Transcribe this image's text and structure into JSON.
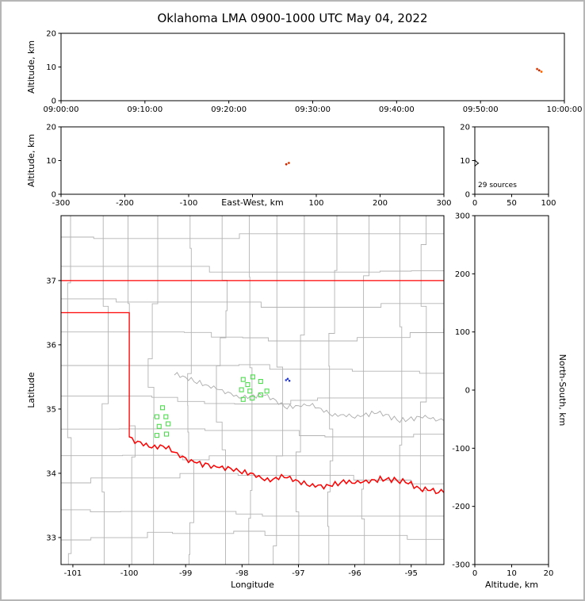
{
  "title": "Oklahoma LMA 0900-1000 UTC May 04, 2022",
  "colors": {
    "axis": "#000000",
    "county": "#b3b3b3",
    "state_border": "#ff0000",
    "river_gray": "#aaaaaa",
    "station": "#4fdc4f",
    "histogram": "#000000"
  },
  "chart_data": {
    "type": "scatter",
    "panels": [
      {
        "id": "time_altitude",
        "ylabel": "Altitude, km",
        "ylim": [
          0,
          20
        ],
        "yticks": [
          0,
          10,
          20
        ],
        "xlim": [
          0,
          3600
        ],
        "xtick_positions": [
          0,
          600,
          1200,
          1800,
          2400,
          3000,
          3600
        ],
        "xtick_labels": [
          "09:00:00",
          "09:10:00",
          "09:20:00",
          "09:30:00",
          "09:40:00",
          "09:50:00",
          "10:00:00"
        ],
        "points": [
          {
            "x": 3405,
            "y": 9.4,
            "c": "#e03a00"
          },
          {
            "x": 3420,
            "y": 9.0,
            "c": "#c82600"
          },
          {
            "x": 3436,
            "y": 8.6,
            "c": "#ff6a00"
          }
        ]
      },
      {
        "id": "ew_altitude",
        "xlabel": "East-West, km",
        "ylabel": "Altitude, km",
        "ylim": [
          0,
          20
        ],
        "yticks": [
          0,
          10,
          20
        ],
        "xlim": [
          -300,
          300
        ],
        "xtick_positions": [
          -300,
          -200,
          -100,
          0,
          100,
          200,
          300
        ],
        "xtick_labels": [
          "-300",
          "-200",
          "-100",
          "",
          "100",
          "200",
          "300"
        ],
        "points": [
          {
            "x": 57,
            "y": 9.3,
            "c": "#e03a00"
          },
          {
            "x": 53,
            "y": 8.9,
            "c": "#c82600"
          }
        ]
      },
      {
        "id": "source_count_altitude",
        "ylim": [
          0,
          20
        ],
        "yticks": [
          0,
          10,
          20
        ],
        "xlim": [
          0,
          100
        ],
        "xtick_positions": [
          0,
          50,
          100
        ],
        "xtick_labels": [
          "0",
          "50",
          "100"
        ],
        "annotation": "29 sources",
        "profile": {
          "alt": [
            8.3,
            8.8,
            9.2,
            9.5,
            9.9,
            10.3
          ],
          "count": [
            0,
            2,
            5,
            3,
            1,
            0
          ]
        }
      },
      {
        "id": "map",
        "xlabel": "Longitude",
        "ylabel": "Latitude",
        "xlim": [
          -101.21,
          -94.42
        ],
        "ylim": [
          32.58,
          38.01
        ],
        "xtick_positions": [
          -101,
          -100,
          -99,
          -98,
          -97,
          -96,
          -95
        ],
        "xtick_labels": [
          "-101",
          "-100",
          "-99",
          "-98",
          "-97",
          "-96",
          "-95"
        ],
        "yticks": [
          33,
          34,
          35,
          36,
          37
        ],
        "stations": [
          [
            -97.98,
            35.46
          ],
          [
            -97.81,
            35.5
          ],
          [
            -97.67,
            35.43
          ],
          [
            -98.01,
            35.3
          ],
          [
            -97.86,
            35.28
          ],
          [
            -97.98,
            35.15
          ],
          [
            -97.82,
            35.17
          ],
          [
            -97.67,
            35.22
          ],
          [
            -97.56,
            35.28
          ],
          [
            -97.9,
            35.38
          ],
          [
            -99.41,
            35.02
          ],
          [
            -99.51,
            34.88
          ],
          [
            -99.35,
            34.88
          ],
          [
            -99.47,
            34.73
          ],
          [
            -99.31,
            34.77
          ],
          [
            -99.51,
            34.59
          ],
          [
            -99.34,
            34.61
          ]
        ],
        "sources": [
          [
            -97.19,
            35.47,
            "#2438c8"
          ],
          [
            -97.16,
            35.44,
            "#1c2cb0"
          ],
          [
            -97.22,
            35.45,
            "#3248d6"
          ]
        ],
        "state_border": {
          "north_lat": 37.0,
          "panhandle_south_lat": 36.5,
          "west_lon": -100.0,
          "red_river": [
            [
              -100.0,
              34.56
            ],
            [
              -99.7,
              34.42
            ],
            [
              -99.35,
              34.4
            ],
            [
              -99.0,
              34.22
            ],
            [
              -98.6,
              34.12
            ],
            [
              -98.2,
              34.07
            ],
            [
              -97.9,
              34.0
            ],
            [
              -97.55,
              33.9
            ],
            [
              -97.2,
              33.95
            ],
            [
              -96.9,
              33.84
            ],
            [
              -96.6,
              33.8
            ],
            [
              -96.2,
              33.86
            ],
            [
              -95.8,
              33.87
            ],
            [
              -95.45,
              33.92
            ],
            [
              -95.1,
              33.87
            ],
            [
              -94.8,
              33.75
            ],
            [
              -94.42,
              33.7
            ]
          ]
        },
        "gray_river": [
          [
            -99.2,
            35.55
          ],
          [
            -98.8,
            35.42
          ],
          [
            -98.4,
            35.3
          ],
          [
            -98.0,
            35.17
          ],
          [
            -97.6,
            35.22
          ],
          [
            -97.2,
            35.02
          ],
          [
            -96.8,
            35.08
          ],
          [
            -96.4,
            34.92
          ],
          [
            -96.0,
            34.88
          ],
          [
            -95.6,
            34.95
          ],
          [
            -95.2,
            34.82
          ],
          [
            -94.8,
            34.88
          ],
          [
            -94.42,
            34.82
          ]
        ]
      },
      {
        "id": "ns_altitude",
        "xlabel": "Altitude, km",
        "ylabel": "North-South, km",
        "xlim": [
          0,
          20
        ],
        "xtick_positions": [
          0,
          10,
          20
        ],
        "xtick_labels": [
          "0",
          "10",
          "20"
        ],
        "ylim": [
          -300,
          300
        ],
        "yticks": [
          -300,
          -200,
          -100,
          0,
          100,
          200,
          300
        ],
        "points": []
      }
    ]
  }
}
